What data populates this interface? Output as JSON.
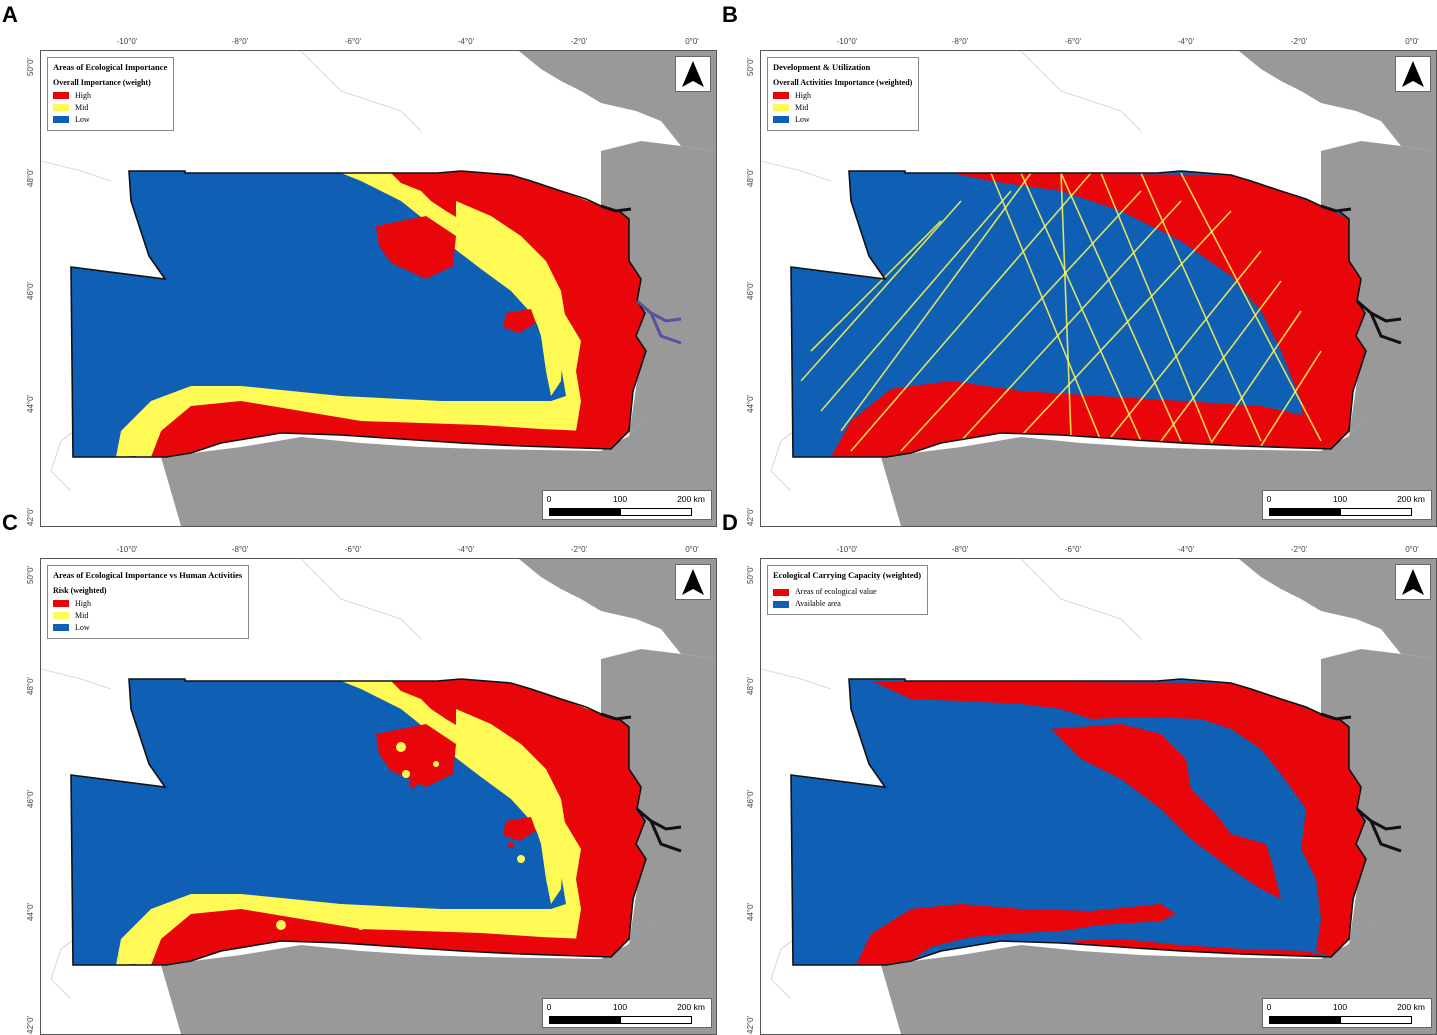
{
  "colors": {
    "high": "#e8060b",
    "mid": "#fffa55",
    "low": "#0f5fb4",
    "land": "#999999",
    "sea": "#ffffff"
  },
  "axes": {
    "lon_ticks": [
      "-10°0'",
      "-8°0'",
      "-6°0'",
      "-4°0'",
      "-2°0'",
      "0°0'"
    ],
    "lat_ticks": [
      "50°0'",
      "48°0'",
      "46°0'",
      "44°0'",
      "42°0'"
    ]
  },
  "scale": {
    "zero": "0",
    "mid": "100",
    "end": "200 km"
  },
  "panels": [
    {
      "letter": "A",
      "style": "importance",
      "legend": {
        "title": "Areas of Ecological Importance",
        "subtitle": "Overall Importance (weight)",
        "items": [
          {
            "label": "High",
            "color": "#e8060b"
          },
          {
            "label": "Mid",
            "color": "#fffa55"
          },
          {
            "label": "Low",
            "color": "#0f5fb4"
          }
        ]
      }
    },
    {
      "letter": "B",
      "style": "activities",
      "legend": {
        "title": "Development & Utilization",
        "subtitle": "Overall Activities Importance (weighted)",
        "items": [
          {
            "label": "High",
            "color": "#e8060b"
          },
          {
            "label": "Mid",
            "color": "#fffa55"
          },
          {
            "label": "Low",
            "color": "#0f5fb4"
          }
        ]
      }
    },
    {
      "letter": "C",
      "style": "risk",
      "legend": {
        "title": "Areas of Ecological Importance vs Human Activities",
        "subtitle": "Risk (weighted)",
        "items": [
          {
            "label": "High",
            "color": "#e8060b"
          },
          {
            "label": "Mid",
            "color": "#fffa55"
          },
          {
            "label": "Low",
            "color": "#0f5fb4"
          }
        ]
      }
    },
    {
      "letter": "D",
      "style": "capacity",
      "legend": {
        "title": "Ecological Carrying Capacity (weighted)",
        "subtitle": "",
        "items": [
          {
            "label": "Areas of ecological value",
            "color": "#e8060b"
          },
          {
            "label": "Available area",
            "color": "#0f5fb4"
          }
        ]
      }
    }
  ]
}
